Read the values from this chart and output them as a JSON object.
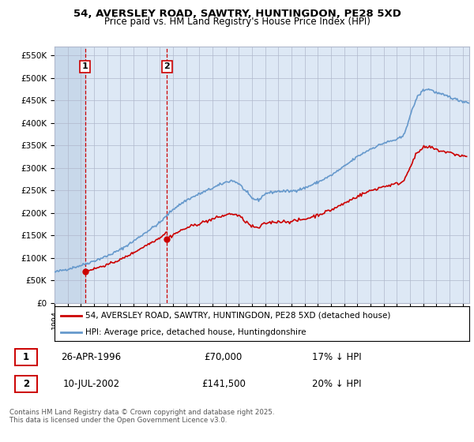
{
  "title_line1": "54, AVERSLEY ROAD, SAWTRY, HUNTINGDON, PE28 5XD",
  "title_line2": "Price paid vs. HM Land Registry's House Price Index (HPI)",
  "legend_label_red": "54, AVERSLEY ROAD, SAWTRY, HUNTINGDON, PE28 5XD (detached house)",
  "legend_label_blue": "HPI: Average price, detached house, Huntingdonshire",
  "purchase1_date": "26-APR-1996",
  "purchase1_price": 70000,
  "purchase1_hpi": "17% ↓ HPI",
  "purchase2_date": "10-JUL-2002",
  "purchase2_price": 141500,
  "purchase2_hpi": "20% ↓ HPI",
  "footer": "Contains HM Land Registry data © Crown copyright and database right 2025.\nThis data is licensed under the Open Government Licence v3.0.",
  "hpi_color": "#6699cc",
  "price_color": "#cc0000",
  "background_color": "#ffffff",
  "plot_bg_color": "#dde8f5",
  "hatch_bg_color": "#c8d8ea",
  "grid_color": "#b0b8cc",
  "vline_color": "#cc0000",
  "ylim": [
    0,
    570000
  ],
  "yticks": [
    0,
    50000,
    100000,
    150000,
    200000,
    250000,
    300000,
    350000,
    400000,
    450000,
    500000,
    550000
  ],
  "x_start_year": 1994,
  "x_end_year": 2025,
  "purchase1_year": 1996.32,
  "purchase2_year": 2002.54
}
